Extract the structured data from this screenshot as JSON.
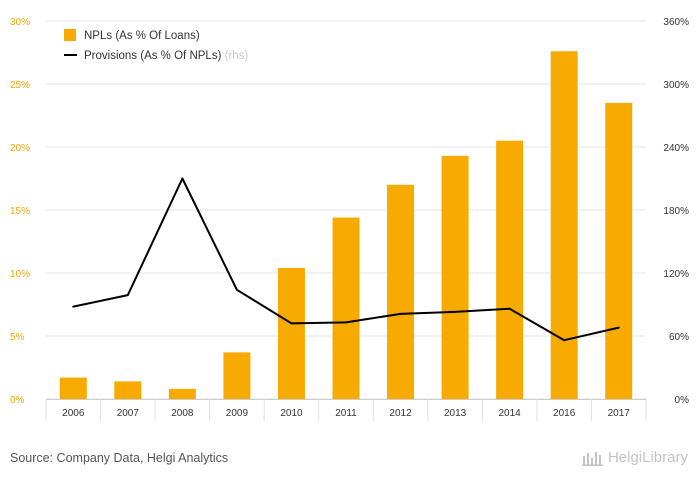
{
  "chart_data": {
    "type": "bar",
    "categories": [
      "2006",
      "2007",
      "2008",
      "2009",
      "2010",
      "2011",
      "2012",
      "2013",
      "2014",
      "2016",
      "2017"
    ],
    "series": [
      {
        "name": "NPLs (As % Of Loans)",
        "type": "bar",
        "axis": "left",
        "color": "#f7ab00",
        "values": [
          1.7,
          1.4,
          0.8,
          3.7,
          10.4,
          14.4,
          17.0,
          19.3,
          20.5,
          27.6,
          23.5
        ]
      },
      {
        "name": "Provisions (As % Of NPLs)",
        "type": "line",
        "axis": "right",
        "color": "#000000",
        "values": [
          88,
          99,
          210,
          104,
          72,
          73,
          81,
          83,
          86,
          56,
          68
        ]
      }
    ],
    "legend_note": "(rhs)",
    "y_left": {
      "lim": [
        0,
        30
      ],
      "ticks": [
        "0%",
        "5%",
        "10%",
        "15%",
        "20%",
        "25%",
        "30%"
      ],
      "color": "#f0a500"
    },
    "y_right": {
      "lim": [
        0,
        360
      ],
      "ticks": [
        "0%",
        "60%",
        "120%",
        "180%",
        "240%",
        "300%",
        "360%"
      ]
    },
    "grid": true,
    "legend_position": "top-left"
  },
  "footer": {
    "source": "Source: Company Data, Helgi Analytics",
    "logo": "HelgiLibrary"
  }
}
